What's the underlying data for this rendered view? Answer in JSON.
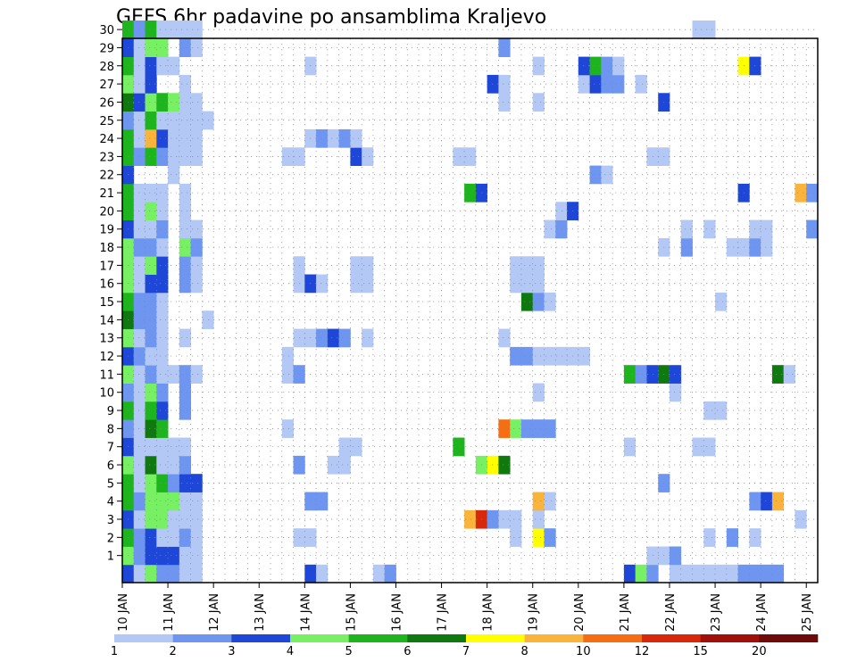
{
  "chart_data": {
    "type": "heatmap",
    "title": "GEFS 6hr padavine po ansamblima Kraljevo",
    "y_tick_labels": [
      "1",
      "2",
      "3",
      "4",
      "5",
      "6",
      "7",
      "8",
      "9",
      "10",
      "11",
      "12",
      "13",
      "14",
      "15",
      "16",
      "17",
      "18",
      "19",
      "20",
      "21",
      "22",
      "23",
      "24",
      "25",
      "26",
      "27",
      "28",
      "29",
      "30"
    ],
    "x_tick_labels": [
      "10 JAN",
      "11 JAN",
      "12 JAN",
      "13 JAN",
      "14 JAN",
      "15 JAN",
      "16 JAN",
      "17 JAN",
      "18 JAN",
      "19 JAN",
      "20 JAN",
      "21 JAN",
      "22 JAN",
      "23 JAN",
      "24 JAN",
      "25 JAN"
    ],
    "colorbar": {
      "tick_labels": [
        "1",
        "2",
        "3",
        "4",
        "5",
        "6",
        "7",
        "8",
        "10",
        "12",
        "15",
        "20"
      ],
      "bin_colors": [
        "#b4c8f5",
        "#6e96f0",
        "#1e46d7",
        "#78f064",
        "#1eb41e",
        "#0f780f",
        "#ffff00",
        "#fab43c",
        "#f56e14",
        "#d7280a",
        "#a00f0a",
        "#6e0a0a"
      ]
    },
    "cells_note": "Each cell: x = forecast step (6-hour steps after 10 JAN 00Z, 0..60), y = ensemble member, c = colorbar bin index (0 = 1-2 mm ... 11 = >20 mm)",
    "cells": [
      [
        0,
        0,
        2
      ],
      [
        1,
        0,
        0
      ],
      [
        2,
        0,
        3
      ],
      [
        3,
        0,
        1
      ],
      [
        4,
        0,
        1
      ],
      [
        5,
        0,
        0
      ],
      [
        6,
        0,
        0
      ],
      [
        16,
        0,
        2
      ],
      [
        17,
        0,
        0
      ],
      [
        22,
        0,
        0
      ],
      [
        23,
        0,
        1
      ],
      [
        44,
        0,
        2
      ],
      [
        45,
        0,
        3
      ],
      [
        46,
        0,
        1
      ],
      [
        48,
        0,
        0
      ],
      [
        49,
        0,
        0
      ],
      [
        50,
        0,
        0
      ],
      [
        51,
        0,
        0
      ],
      [
        52,
        0,
        0
      ],
      [
        53,
        0,
        0
      ],
      [
        54,
        0,
        1
      ],
      [
        55,
        0,
        1
      ],
      [
        56,
        0,
        1
      ],
      [
        57,
        0,
        1
      ],
      [
        0,
        1,
        3
      ],
      [
        1,
        1,
        1
      ],
      [
        2,
        1,
        2
      ],
      [
        3,
        1,
        2
      ],
      [
        4,
        1,
        2
      ],
      [
        5,
        1,
        0
      ],
      [
        6,
        1,
        0
      ],
      [
        46,
        1,
        0
      ],
      [
        47,
        1,
        0
      ],
      [
        48,
        1,
        1
      ],
      [
        0,
        2,
        4
      ],
      [
        1,
        2,
        1
      ],
      [
        2,
        2,
        2
      ],
      [
        3,
        2,
        0
      ],
      [
        4,
        2,
        0
      ],
      [
        5,
        2,
        1
      ],
      [
        6,
        2,
        0
      ],
      [
        15,
        2,
        0
      ],
      [
        16,
        2,
        0
      ],
      [
        34,
        2,
        0
      ],
      [
        36,
        2,
        6
      ],
      [
        37,
        2,
        1
      ],
      [
        51,
        2,
        0
      ],
      [
        53,
        2,
        1
      ],
      [
        55,
        2,
        0
      ],
      [
        0,
        3,
        2
      ],
      [
        1,
        3,
        0
      ],
      [
        2,
        3,
        3
      ],
      [
        3,
        3,
        3
      ],
      [
        4,
        3,
        0
      ],
      [
        5,
        3,
        0
      ],
      [
        6,
        3,
        0
      ],
      [
        30,
        3,
        7
      ],
      [
        31,
        3,
        9
      ],
      [
        32,
        3,
        1
      ],
      [
        33,
        3,
        0
      ],
      [
        34,
        3,
        0
      ],
      [
        36,
        3,
        0
      ],
      [
        59,
        3,
        0
      ],
      [
        0,
        4,
        4
      ],
      [
        1,
        4,
        1
      ],
      [
        2,
        4,
        3
      ],
      [
        3,
        4,
        3
      ],
      [
        4,
        4,
        3
      ],
      [
        5,
        4,
        0
      ],
      [
        6,
        4,
        0
      ],
      [
        16,
        4,
        1
      ],
      [
        17,
        4,
        1
      ],
      [
        36,
        4,
        7
      ],
      [
        37,
        4,
        0
      ],
      [
        55,
        4,
        1
      ],
      [
        56,
        4,
        2
      ],
      [
        57,
        4,
        7
      ],
      [
        0,
        5,
        4
      ],
      [
        1,
        5,
        0
      ],
      [
        2,
        5,
        3
      ],
      [
        3,
        5,
        4
      ],
      [
        4,
        5,
        1
      ],
      [
        5,
        5,
        2
      ],
      [
        6,
        5,
        2
      ],
      [
        47,
        5,
        1
      ],
      [
        0,
        6,
        3
      ],
      [
        1,
        6,
        0
      ],
      [
        2,
        6,
        5
      ],
      [
        3,
        6,
        0
      ],
      [
        4,
        6,
        0
      ],
      [
        5,
        6,
        1
      ],
      [
        15,
        6,
        1
      ],
      [
        18,
        6,
        0
      ],
      [
        19,
        6,
        0
      ],
      [
        31,
        6,
        3
      ],
      [
        32,
        6,
        6
      ],
      [
        33,
        6,
        5
      ],
      [
        0,
        7,
        2
      ],
      [
        1,
        7,
        0
      ],
      [
        2,
        7,
        0
      ],
      [
        3,
        7,
        0
      ],
      [
        4,
        7,
        0
      ],
      [
        5,
        7,
        0
      ],
      [
        19,
        7,
        0
      ],
      [
        20,
        7,
        0
      ],
      [
        29,
        7,
        4
      ],
      [
        44,
        7,
        0
      ],
      [
        50,
        7,
        0
      ],
      [
        51,
        7,
        0
      ],
      [
        0,
        8,
        1
      ],
      [
        1,
        8,
        0
      ],
      [
        2,
        8,
        5
      ],
      [
        3,
        8,
        4
      ],
      [
        14,
        8,
        0
      ],
      [
        33,
        8,
        8
      ],
      [
        34,
        8,
        3
      ],
      [
        35,
        8,
        1
      ],
      [
        36,
        8,
        1
      ],
      [
        37,
        8,
        1
      ],
      [
        0,
        9,
        4
      ],
      [
        1,
        9,
        0
      ],
      [
        2,
        9,
        4
      ],
      [
        3,
        9,
        2
      ],
      [
        5,
        9,
        1
      ],
      [
        51,
        9,
        0
      ],
      [
        52,
        9,
        0
      ],
      [
        0,
        10,
        1
      ],
      [
        1,
        10,
        0
      ],
      [
        2,
        10,
        3
      ],
      [
        3,
        10,
        1
      ],
      [
        5,
        10,
        1
      ],
      [
        36,
        10,
        0
      ],
      [
        48,
        10,
        0
      ],
      [
        0,
        11,
        3
      ],
      [
        1,
        11,
        0
      ],
      [
        2,
        11,
        1
      ],
      [
        3,
        11,
        0
      ],
      [
        4,
        11,
        0
      ],
      [
        5,
        11,
        1
      ],
      [
        6,
        11,
        0
      ],
      [
        14,
        11,
        0
      ],
      [
        15,
        11,
        1
      ],
      [
        44,
        11,
        4
      ],
      [
        45,
        11,
        1
      ],
      [
        46,
        11,
        2
      ],
      [
        47,
        11,
        5
      ],
      [
        48,
        11,
        2
      ],
      [
        57,
        11,
        5
      ],
      [
        58,
        11,
        0
      ],
      [
        0,
        12,
        2
      ],
      [
        1,
        12,
        1
      ],
      [
        2,
        12,
        0
      ],
      [
        3,
        12,
        0
      ],
      [
        14,
        12,
        0
      ],
      [
        34,
        12,
        1
      ],
      [
        35,
        12,
        1
      ],
      [
        36,
        12,
        0
      ],
      [
        37,
        12,
        0
      ],
      [
        38,
        12,
        0
      ],
      [
        39,
        12,
        0
      ],
      [
        40,
        12,
        0
      ],
      [
        0,
        13,
        3
      ],
      [
        1,
        13,
        0
      ],
      [
        2,
        13,
        1
      ],
      [
        3,
        13,
        0
      ],
      [
        5,
        13,
        0
      ],
      [
        15,
        13,
        0
      ],
      [
        16,
        13,
        0
      ],
      [
        17,
        13,
        1
      ],
      [
        18,
        13,
        2
      ],
      [
        19,
        13,
        1
      ],
      [
        21,
        13,
        0
      ],
      [
        33,
        13,
        0
      ],
      [
        0,
        14,
        5
      ],
      [
        1,
        14,
        1
      ],
      [
        2,
        14,
        1
      ],
      [
        3,
        14,
        0
      ],
      [
        7,
        14,
        0
      ],
      [
        0,
        15,
        4
      ],
      [
        1,
        15,
        1
      ],
      [
        2,
        15,
        1
      ],
      [
        3,
        15,
        0
      ],
      [
        35,
        15,
        5
      ],
      [
        36,
        15,
        1
      ],
      [
        37,
        15,
        0
      ],
      [
        52,
        15,
        0
      ],
      [
        0,
        16,
        3
      ],
      [
        1,
        16,
        0
      ],
      [
        2,
        16,
        2
      ],
      [
        3,
        16,
        2
      ],
      [
        5,
        16,
        1
      ],
      [
        6,
        16,
        0
      ],
      [
        15,
        16,
        0
      ],
      [
        16,
        16,
        2
      ],
      [
        17,
        16,
        0
      ],
      [
        20,
        16,
        0
      ],
      [
        21,
        16,
        0
      ],
      [
        34,
        16,
        0
      ],
      [
        35,
        16,
        0
      ],
      [
        36,
        16,
        0
      ],
      [
        0,
        17,
        3
      ],
      [
        1,
        17,
        0
      ],
      [
        2,
        17,
        3
      ],
      [
        3,
        17,
        2
      ],
      [
        5,
        17,
        1
      ],
      [
        6,
        17,
        0
      ],
      [
        15,
        17,
        0
      ],
      [
        20,
        17,
        0
      ],
      [
        21,
        17,
        0
      ],
      [
        34,
        17,
        0
      ],
      [
        35,
        17,
        0
      ],
      [
        36,
        17,
        0
      ],
      [
        0,
        18,
        3
      ],
      [
        1,
        18,
        1
      ],
      [
        2,
        18,
        1
      ],
      [
        3,
        18,
        0
      ],
      [
        5,
        18,
        3
      ],
      [
        6,
        18,
        1
      ],
      [
        47,
        18,
        0
      ],
      [
        49,
        18,
        1
      ],
      [
        53,
        18,
        0
      ],
      [
        54,
        18,
        0
      ],
      [
        55,
        18,
        1
      ],
      [
        56,
        18,
        0
      ],
      [
        0,
        19,
        2
      ],
      [
        1,
        19,
        0
      ],
      [
        2,
        19,
        0
      ],
      [
        3,
        19,
        1
      ],
      [
        5,
        19,
        0
      ],
      [
        6,
        19,
        0
      ],
      [
        37,
        19,
        0
      ],
      [
        38,
        19,
        1
      ],
      [
        49,
        19,
        0
      ],
      [
        51,
        19,
        0
      ],
      [
        55,
        19,
        0
      ],
      [
        56,
        19,
        0
      ],
      [
        60,
        19,
        1
      ],
      [
        0,
        20,
        4
      ],
      [
        1,
        20,
        0
      ],
      [
        2,
        20,
        3
      ],
      [
        3,
        20,
        0
      ],
      [
        5,
        20,
        0
      ],
      [
        38,
        20,
        0
      ],
      [
        39,
        20,
        2
      ],
      [
        0,
        21,
        4
      ],
      [
        1,
        21,
        0
      ],
      [
        2,
        21,
        0
      ],
      [
        3,
        21,
        0
      ],
      [
        5,
        21,
        0
      ],
      [
        30,
        21,
        4
      ],
      [
        31,
        21,
        2
      ],
      [
        54,
        21,
        2
      ],
      [
        59,
        21,
        7
      ],
      [
        60,
        21,
        1
      ],
      [
        0,
        22,
        2
      ],
      [
        4,
        22,
        0
      ],
      [
        41,
        22,
        1
      ],
      [
        42,
        22,
        0
      ],
      [
        0,
        23,
        4
      ],
      [
        1,
        23,
        1
      ],
      [
        2,
        23,
        4
      ],
      [
        3,
        23,
        1
      ],
      [
        4,
        23,
        0
      ],
      [
        5,
        23,
        0
      ],
      [
        6,
        23,
        0
      ],
      [
        14,
        23,
        0
      ],
      [
        15,
        23,
        0
      ],
      [
        20,
        23,
        2
      ],
      [
        21,
        23,
        0
      ],
      [
        29,
        23,
        0
      ],
      [
        30,
        23,
        0
      ],
      [
        46,
        23,
        0
      ],
      [
        47,
        23,
        0
      ],
      [
        0,
        24,
        4
      ],
      [
        1,
        24,
        0
      ],
      [
        2,
        24,
        7
      ],
      [
        3,
        24,
        2
      ],
      [
        4,
        24,
        0
      ],
      [
        5,
        24,
        0
      ],
      [
        6,
        24,
        0
      ],
      [
        16,
        24,
        0
      ],
      [
        17,
        24,
        1
      ],
      [
        18,
        24,
        0
      ],
      [
        19,
        24,
        1
      ],
      [
        20,
        24,
        0
      ],
      [
        0,
        25,
        1
      ],
      [
        1,
        25,
        0
      ],
      [
        2,
        25,
        4
      ],
      [
        3,
        25,
        0
      ],
      [
        4,
        25,
        0
      ],
      [
        5,
        25,
        0
      ],
      [
        6,
        25,
        0
      ],
      [
        7,
        25,
        0
      ],
      [
        0,
        26,
        5
      ],
      [
        1,
        26,
        2
      ],
      [
        2,
        26,
        3
      ],
      [
        3,
        26,
        4
      ],
      [
        4,
        26,
        3
      ],
      [
        5,
        26,
        0
      ],
      [
        6,
        26,
        0
      ],
      [
        33,
        26,
        0
      ],
      [
        36,
        26,
        0
      ],
      [
        47,
        26,
        2
      ],
      [
        0,
        27,
        3
      ],
      [
        1,
        27,
        0
      ],
      [
        2,
        27,
        2
      ],
      [
        5,
        27,
        0
      ],
      [
        32,
        27,
        2
      ],
      [
        33,
        27,
        0
      ],
      [
        40,
        27,
        0
      ],
      [
        41,
        27,
        2
      ],
      [
        42,
        27,
        1
      ],
      [
        43,
        27,
        1
      ],
      [
        45,
        27,
        0
      ],
      [
        0,
        28,
        4
      ],
      [
        1,
        28,
        0
      ],
      [
        2,
        28,
        2
      ],
      [
        3,
        28,
        0
      ],
      [
        4,
        28,
        0
      ],
      [
        16,
        28,
        0
      ],
      [
        36,
        28,
        0
      ],
      [
        40,
        28,
        2
      ],
      [
        41,
        28,
        4
      ],
      [
        42,
        28,
        1
      ],
      [
        43,
        28,
        0
      ],
      [
        54,
        28,
        6
      ],
      [
        55,
        28,
        2
      ],
      [
        0,
        29,
        2
      ],
      [
        1,
        29,
        0
      ],
      [
        2,
        29,
        3
      ],
      [
        3,
        29,
        3
      ],
      [
        5,
        29,
        1
      ],
      [
        6,
        29,
        0
      ],
      [
        33,
        29,
        1
      ],
      [
        0,
        30,
        4
      ],
      [
        1,
        30,
        1
      ],
      [
        2,
        30,
        4
      ],
      [
        3,
        30,
        0
      ],
      [
        4,
        30,
        0
      ],
      [
        5,
        30,
        0
      ],
      [
        6,
        30,
        0
      ],
      [
        50,
        30,
        0
      ],
      [
        51,
        30,
        0
      ]
    ]
  }
}
